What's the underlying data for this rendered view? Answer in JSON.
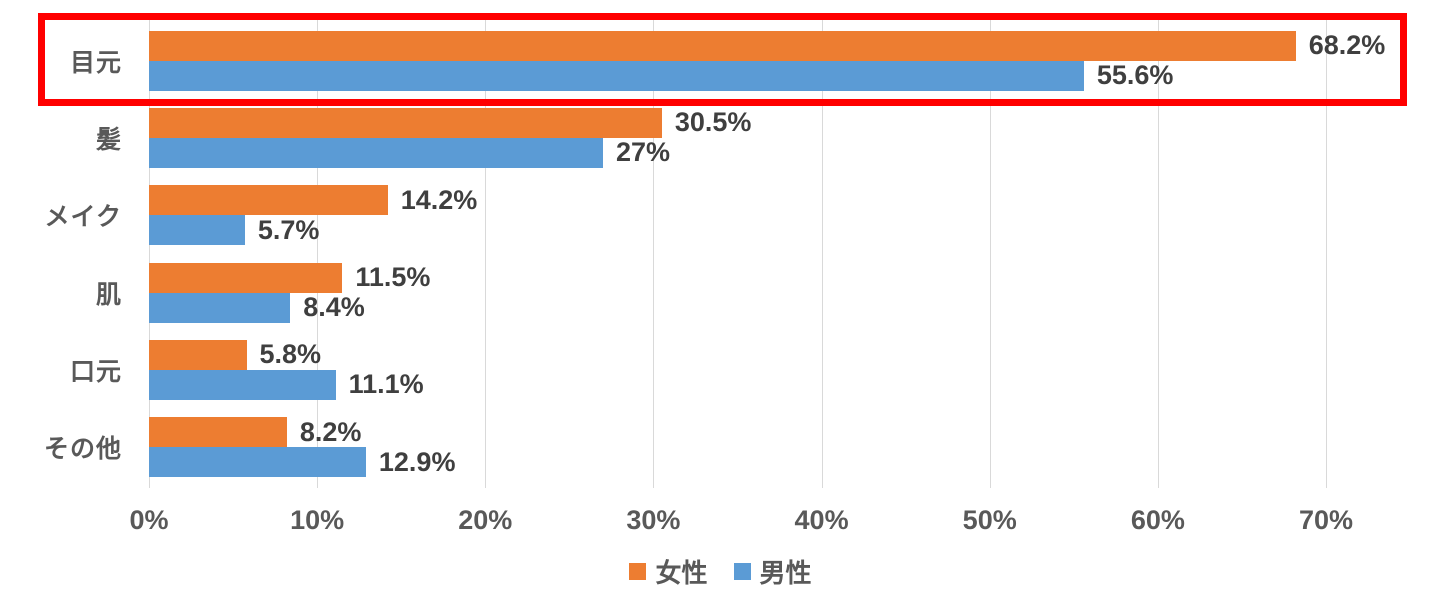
{
  "chart_data": {
    "type": "bar",
    "orientation": "horizontal",
    "title": "",
    "categories": [
      "目元",
      "髪",
      "メイク",
      "肌",
      "口元",
      "その他"
    ],
    "series": [
      {
        "name": "女性",
        "color": "#ED7D31",
        "values": [
          68.2,
          30.5,
          14.2,
          11.5,
          5.8,
          8.2
        ],
        "labels": [
          "68.2%",
          "30.5%",
          "14.2%",
          "11.5%",
          "5.8%",
          "8.2%"
        ]
      },
      {
        "name": "男性",
        "color": "#5B9BD5",
        "values": [
          55.6,
          27,
          5.7,
          8.4,
          11.1,
          12.9
        ],
        "labels": [
          "55.6%",
          "27%",
          "5.7%",
          "8.4%",
          "11.1%",
          "12.9%"
        ]
      }
    ],
    "x_axis": {
      "min": 0,
      "max": 70,
      "ticks": [
        "0%",
        "10%",
        "20%",
        "30%",
        "40%",
        "50%",
        "60%",
        "70%"
      ],
      "gridlines": "on"
    },
    "legend": {
      "position": "bottom",
      "entries": [
        {
          "label": "女性",
          "color": "#ED7D31"
        },
        {
          "label": "男性",
          "color": "#5B9BD5"
        }
      ]
    },
    "annotation": {
      "type": "highlight-rectangle",
      "color": "#FF0000",
      "target_category": "目元"
    }
  },
  "styles": {
    "background": "#FFFFFF",
    "gridline_color": "#D9D9D9",
    "axis_label_color": "#595959",
    "bar_label_color": "#3F3F3F"
  }
}
